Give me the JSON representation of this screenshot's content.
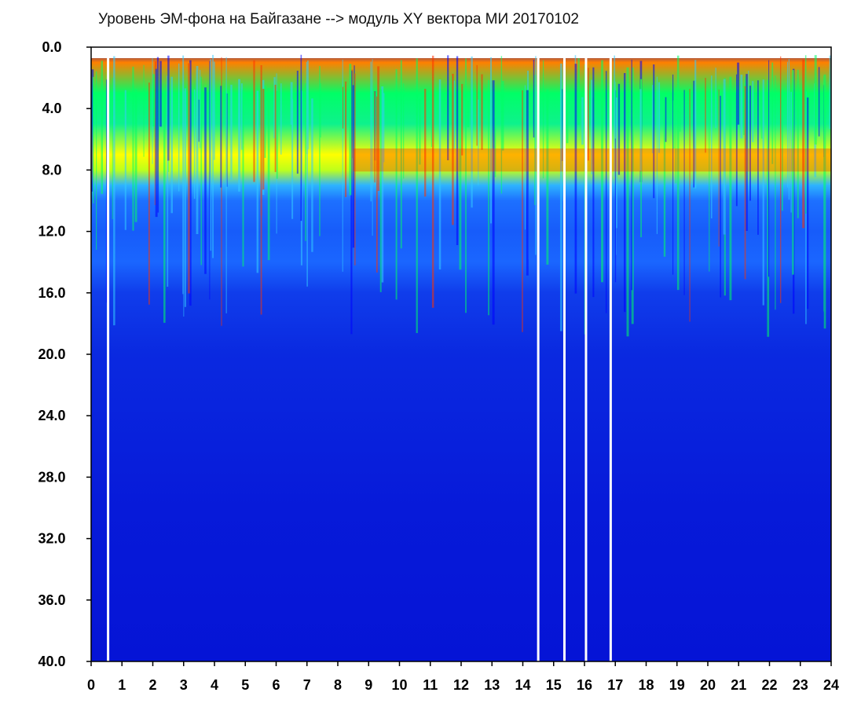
{
  "chart_data": {
    "type": "heatmap",
    "title": "Уровень ЭМ-фона на Байгазане  -->  модуль XY вектора МИ  20170102",
    "x_ticks": [
      "0",
      "1",
      "2",
      "3",
      "4",
      "5",
      "6",
      "7",
      "8",
      "9",
      "10",
      "11",
      "12",
      "13",
      "14",
      "15",
      "16",
      "17",
      "18",
      "19",
      "20",
      "21",
      "22",
      "23",
      "24"
    ],
    "y_ticks": [
      "0.0",
      "4.0",
      "8.0",
      "12.0",
      "16.0",
      "20.0",
      "24.0",
      "28.0",
      "32.0",
      "36.0",
      "40.0"
    ],
    "xlim": [
      0,
      24
    ],
    "ylim": [
      0,
      40
    ],
    "y_inverted": true,
    "grid": false,
    "colormap": [
      "#0000cc",
      "#1a66ff",
      "#33ccff",
      "#00ff66",
      "#ffff00",
      "#ff0000"
    ],
    "intensity_profile": {
      "y": [
        0,
        1,
        3,
        5,
        7,
        8,
        9,
        10,
        12,
        14,
        16,
        20,
        30,
        40
      ],
      "level": [
        0.0,
        0.9,
        0.6,
        0.55,
        0.8,
        0.75,
        0.35,
        0.22,
        0.18,
        0.2,
        0.12,
        0.08,
        0.05,
        0.04
      ]
    },
    "gaps_x": [
      0.55,
      14.5,
      15.35,
      16.05,
      16.85
    ]
  }
}
